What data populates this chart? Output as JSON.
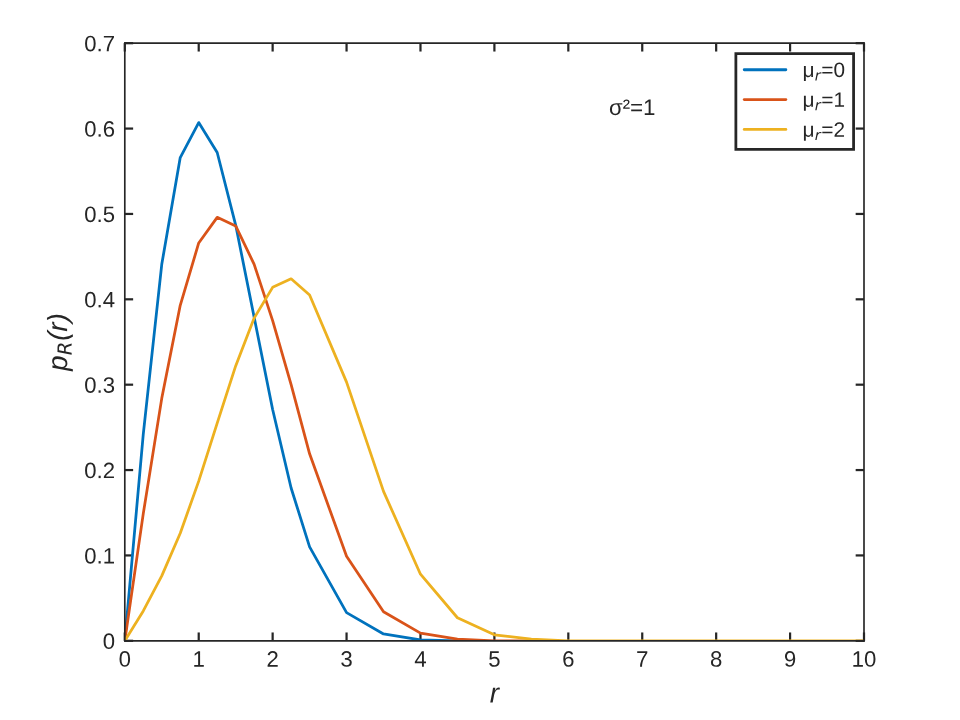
{
  "chart_data": {
    "type": "line",
    "xlabel": "r",
    "ylabel": "p$_{R}$(r)",
    "annotations": [
      "σ²=1"
    ],
    "xlim": [
      0,
      10
    ],
    "xticks": [
      0,
      1,
      2,
      3,
      4,
      5,
      6,
      7,
      8,
      9,
      10
    ],
    "ylim": [
      0,
      0.7
    ],
    "yticks": [
      0,
      0.1,
      0.2,
      0.3,
      0.4,
      0.5,
      0.6,
      0.7
    ],
    "legend": "top right",
    "grid": false,
    "marker": "none",
    "line_style": "solid",
    "x": [
      0,
      0.25,
      0.5,
      0.75,
      1,
      1.25,
      1.5,
      1.75,
      2,
      2.25,
      2.5,
      3,
      3.5,
      4,
      4.5,
      5,
      5.5,
      6,
      7,
      8,
      9,
      10
    ],
    "series": [
      {
        "name": "μ$_{r}$=0",
        "color": "#0072bd",
        "values": [
          0,
          0.242,
          0.441,
          0.566,
          0.607,
          0.572,
          0.487,
          0.379,
          0.271,
          0.179,
          0.11,
          0.033,
          0.008,
          0.001,
          0,
          null,
          null,
          null,
          null,
          null,
          null,
          null
        ]
      },
      {
        "name": "μ$_{r}$=1",
        "color": "#d95319",
        "values": [
          0,
          0.149,
          0.284,
          0.393,
          0.466,
          0.496,
          0.486,
          0.441,
          0.375,
          0.3,
          0.219,
          0.099,
          0.034,
          0.009,
          0.002,
          0,
          0,
          null,
          null,
          null,
          null,
          null
        ]
      },
      {
        "name": "μ$_{r}$=2",
        "color": "#edb120",
        "values": [
          0,
          0.035,
          0.076,
          0.126,
          0.187,
          0.255,
          0.322,
          0.378,
          0.414,
          0.424,
          0.405,
          0.303,
          0.175,
          0.078,
          0.027,
          0.007,
          0.002,
          0,
          0,
          0,
          0,
          0
        ]
      }
    ]
  }
}
